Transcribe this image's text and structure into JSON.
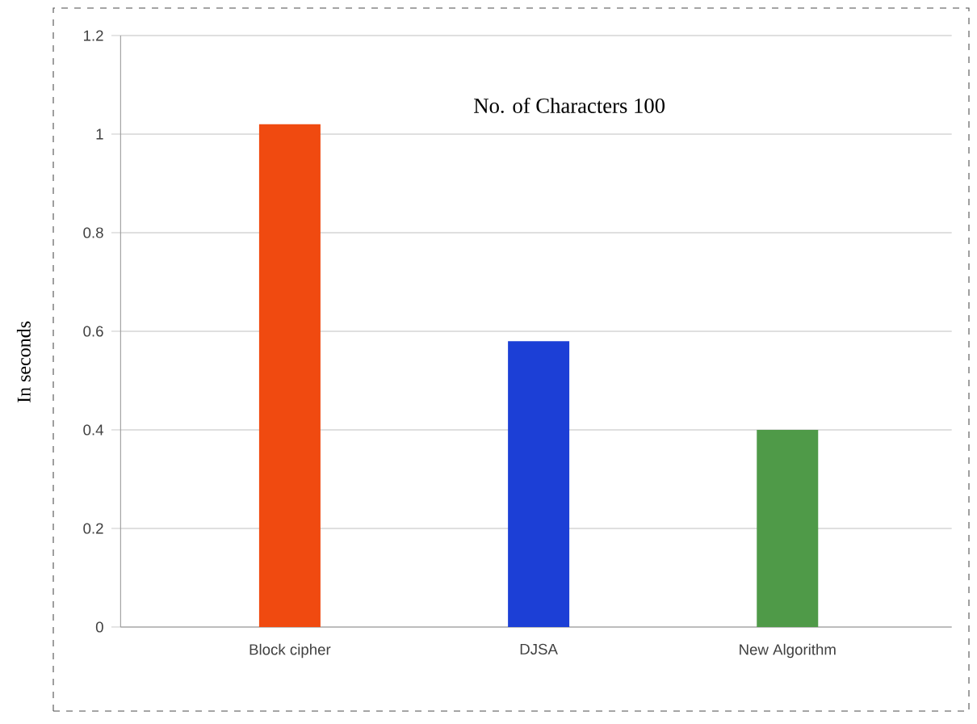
{
  "chart_data": {
    "type": "bar",
    "title": "No. of Characters 100",
    "ylabel": "In seconds",
    "categories": [
      "Block cipher",
      "DJSA",
      "New Algorithm"
    ],
    "values": [
      1.02,
      0.58,
      0.4
    ],
    "colors": [
      "#f04a10",
      "#1c3fd6",
      "#4f9a48"
    ],
    "ylim": [
      0,
      1.2
    ],
    "yticks": [
      0,
      0.2,
      0.4,
      0.6,
      0.8,
      1,
      1.2
    ],
    "grid": "y"
  }
}
